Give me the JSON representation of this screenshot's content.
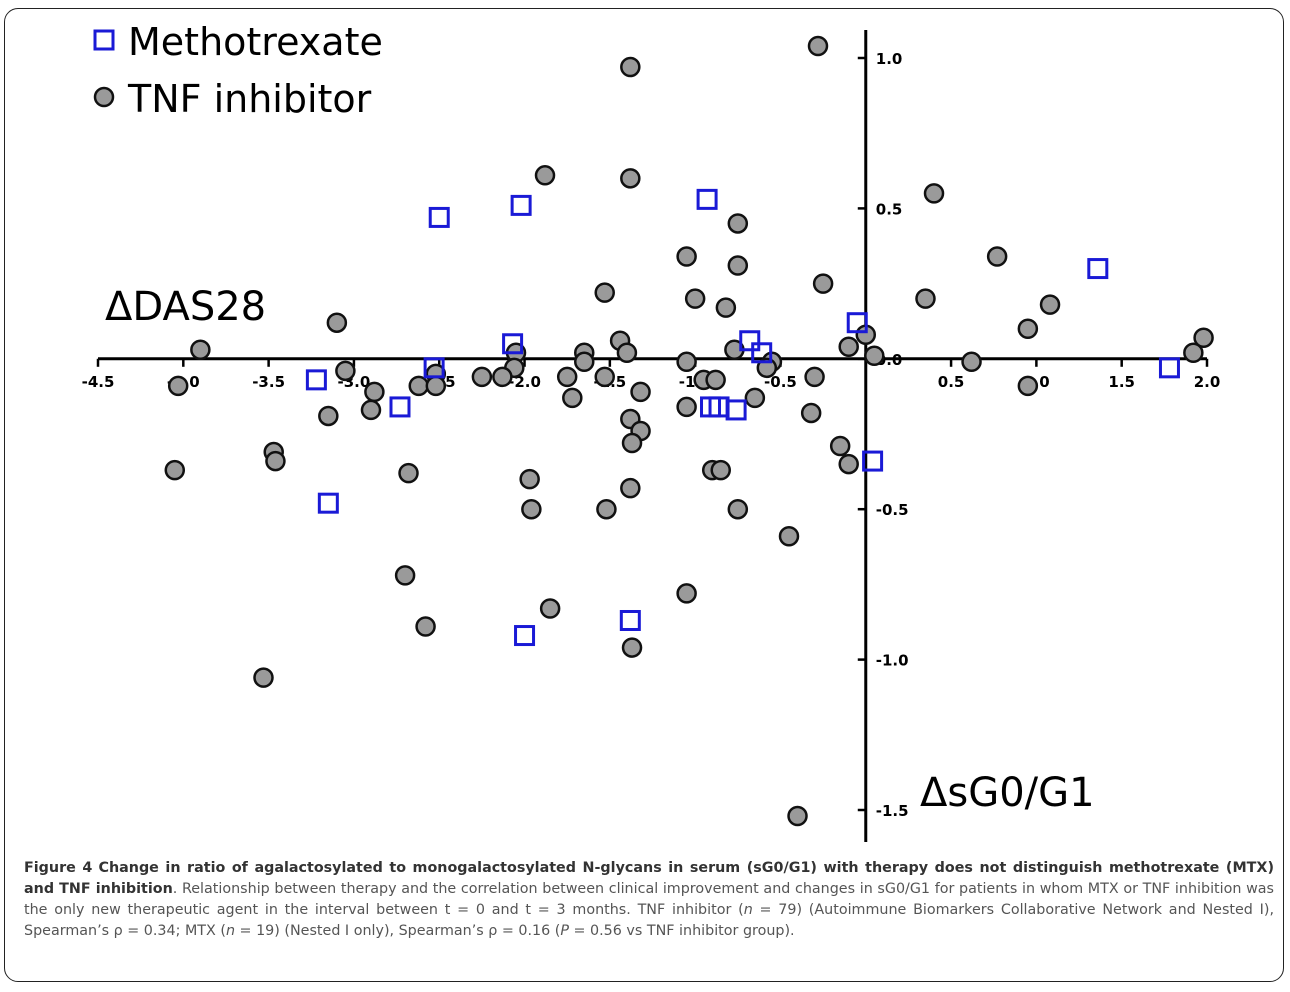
{
  "chart_data": {
    "type": "scatter",
    "xlabel": "ΔsG0/G1",
    "ylabel": "ΔDAS28",
    "xlim": [
      -4.5,
      2.0
    ],
    "ylim": [
      -1.5,
      1.1
    ],
    "x_ticks": [
      -4.5,
      -4.0,
      -3.5,
      -3.0,
      -2.5,
      -2.0,
      -1.5,
      -1.0,
      -0.5,
      0.0,
      0.5,
      1.0,
      1.5,
      2.0
    ],
    "x_tick_labels": [
      "-4.5",
      "-4.0",
      "-3.5",
      "-3.0",
      "-2.5",
      "-2.0",
      "-1.5",
      "-1.0",
      "-0.5",
      "",
      "0.5",
      "1.0",
      "1.5",
      "2.0"
    ],
    "y_ticks": [
      -1.5,
      -1.0,
      -0.5,
      0.0,
      0.5,
      1.0
    ],
    "y_tick_labels": [
      "-1.5",
      "-1.0",
      "-0.5",
      "0.0",
      "0.5",
      "1.0"
    ],
    "grid": false,
    "legend_position": "top-left",
    "series": [
      {
        "name": "Methotrexate",
        "marker": "open-square",
        "color": "#1a1ad6",
        "points": [
          [
            -2.5,
            0.47
          ],
          [
            -2.02,
            0.51
          ],
          [
            -0.93,
            0.53
          ],
          [
            1.36,
            0.3
          ],
          [
            -0.05,
            0.12
          ],
          [
            -2.07,
            0.05
          ],
          [
            -0.68,
            0.06
          ],
          [
            -0.61,
            0.02
          ],
          [
            -2.53,
            -0.03
          ],
          [
            -3.22,
            -0.07
          ],
          [
            1.78,
            -0.03
          ],
          [
            -2.73,
            -0.16
          ],
          [
            -0.91,
            -0.16
          ],
          [
            -0.86,
            -0.16
          ],
          [
            -0.76,
            -0.17
          ],
          [
            0.04,
            -0.34
          ],
          [
            -3.15,
            -0.48
          ],
          [
            -2.0,
            -0.92
          ],
          [
            -1.38,
            -0.87
          ]
        ]
      },
      {
        "name": "TNF inhibitor",
        "marker": "filled-circle",
        "color": "#9a9a9a",
        "points": [
          [
            -0.28,
            1.04
          ],
          [
            -1.38,
            0.97
          ],
          [
            -1.38,
            0.6
          ],
          [
            -1.88,
            0.61
          ],
          [
            0.4,
            0.55
          ],
          [
            -0.75,
            0.45
          ],
          [
            -1.05,
            0.34
          ],
          [
            -0.75,
            0.31
          ],
          [
            0.77,
            0.34
          ],
          [
            -0.25,
            0.25
          ],
          [
            -1.53,
            0.22
          ],
          [
            -1.0,
            0.2
          ],
          [
            0.35,
            0.2
          ],
          [
            -0.82,
            0.17
          ],
          [
            1.08,
            0.18
          ],
          [
            -3.1,
            0.12
          ],
          [
            0.95,
            0.1
          ],
          [
            0.0,
            0.08
          ],
          [
            -0.1,
            0.04
          ],
          [
            -1.44,
            0.06
          ],
          [
            -3.9,
            0.03
          ],
          [
            -0.77,
            0.03
          ],
          [
            -1.4,
            0.02
          ],
          [
            -2.05,
            0.02
          ],
          [
            -1.65,
            0.02
          ],
          [
            1.98,
            0.07
          ],
          [
            1.92,
            0.02
          ],
          [
            0.05,
            0.01
          ],
          [
            -1.65,
            -0.01
          ],
          [
            -1.05,
            -0.01
          ],
          [
            -0.55,
            -0.01
          ],
          [
            0.62,
            -0.01
          ],
          [
            -0.58,
            -0.03
          ],
          [
            -2.06,
            -0.03
          ],
          [
            -3.05,
            -0.04
          ],
          [
            -2.52,
            -0.05
          ],
          [
            -2.25,
            -0.06
          ],
          [
            -2.13,
            -0.06
          ],
          [
            -1.75,
            -0.06
          ],
          [
            -1.53,
            -0.06
          ],
          [
            -0.3,
            -0.06
          ],
          [
            -0.95,
            -0.07
          ],
          [
            -0.88,
            -0.07
          ],
          [
            -4.03,
            -0.09
          ],
          [
            -2.62,
            -0.09
          ],
          [
            -2.52,
            -0.09
          ],
          [
            0.95,
            -0.09
          ],
          [
            -2.88,
            -0.11
          ],
          [
            -1.32,
            -0.11
          ],
          [
            -1.72,
            -0.13
          ],
          [
            -0.65,
            -0.13
          ],
          [
            -1.05,
            -0.16
          ],
          [
            -2.9,
            -0.17
          ],
          [
            -3.15,
            -0.19
          ],
          [
            -0.32,
            -0.18
          ],
          [
            -1.38,
            -0.2
          ],
          [
            -1.32,
            -0.24
          ],
          [
            -1.37,
            -0.28
          ],
          [
            -0.15,
            -0.29
          ],
          [
            -3.47,
            -0.31
          ],
          [
            -3.46,
            -0.34
          ],
          [
            -0.1,
            -0.35
          ],
          [
            -0.9,
            -0.37
          ],
          [
            -0.85,
            -0.37
          ],
          [
            -4.05,
            -0.37
          ],
          [
            -2.68,
            -0.38
          ],
          [
            -1.97,
            -0.4
          ],
          [
            -1.38,
            -0.43
          ],
          [
            -1.96,
            -0.5
          ],
          [
            -1.52,
            -0.5
          ],
          [
            -0.75,
            -0.5
          ],
          [
            -0.45,
            -0.59
          ],
          [
            -2.7,
            -0.72
          ],
          [
            -1.85,
            -0.83
          ],
          [
            -1.05,
            -0.78
          ],
          [
            -2.58,
            -0.89
          ],
          [
            -1.37,
            -0.96
          ],
          [
            -3.53,
            -1.06
          ],
          [
            -0.4,
            -1.52
          ]
        ]
      }
    ]
  },
  "caption": {
    "figure_label": "Figure 4",
    "bold_title": "Change in ratio of agalactosylated to monogalactosylated N-glycans in serum (sG0/G1) with therapy does not distinguish methotrexate (MTX) and TNF inhibition",
    "text_1": ". Relationship between therapy and the correlation between clinical improvement and changes in sG0/G1 for patients in whom MTX or TNF inhibition was the only new therapeutic agent in the interval between t = 0 and t = 3 months. TNF inhibitor (",
    "n_symbol": "n",
    "text_2": " = 79) (Autoimmune Biomarkers Collaborative Network and Nested I), Spearman’s ρ = 0.34; MTX (",
    "text_3": " = 19) (Nested I only), Spearman’s ρ = 0.16 (",
    "p_symbol": "P",
    "text_4": " = 0.56 vs TNF inhibitor group)."
  }
}
